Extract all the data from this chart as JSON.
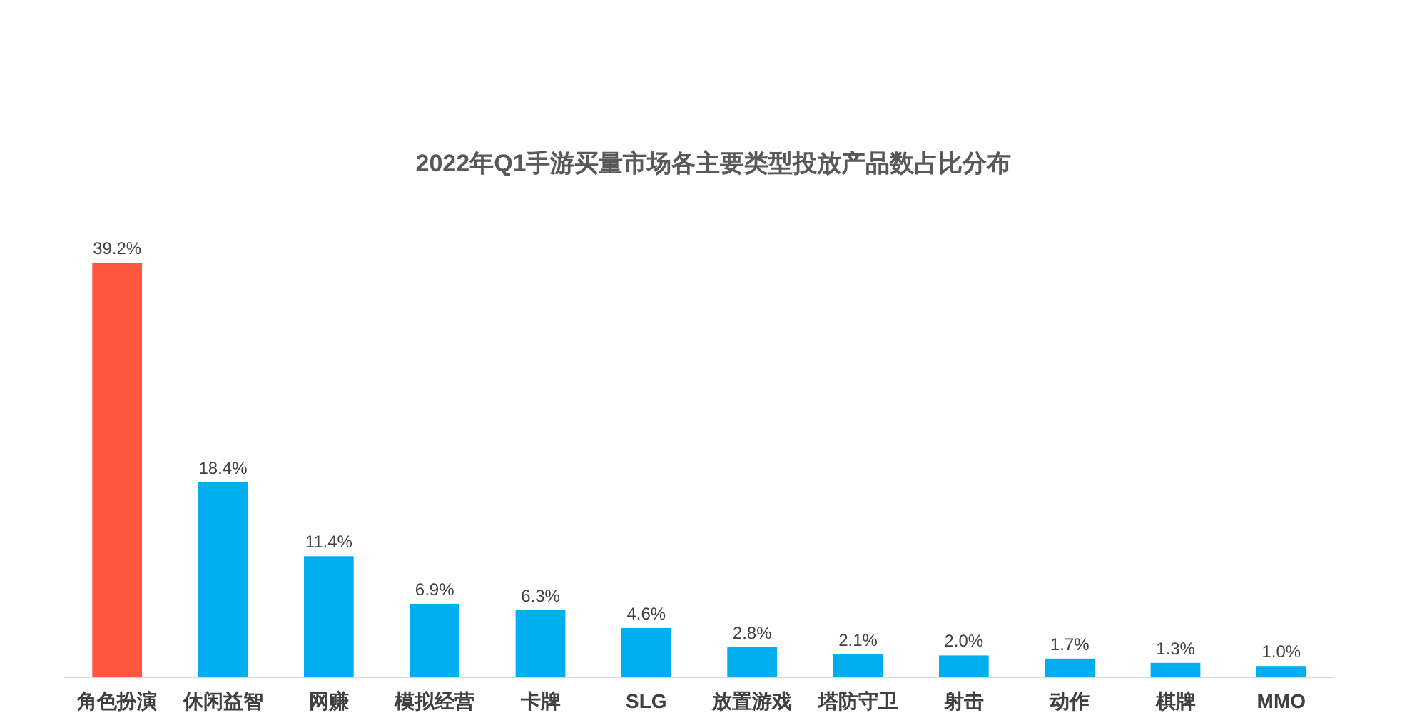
{
  "chart_data": {
    "type": "bar",
    "title": "2022年Q1手游买量市场各主要类型投放产品数占比分布",
    "categories": [
      "角色扮演",
      "休闲益智",
      "网赚",
      "模拟经营",
      "卡牌",
      "SLG",
      "放置游戏",
      "塔防守卫",
      "射击",
      "动作",
      "棋牌",
      "MMO"
    ],
    "values": [
      39.2,
      18.4,
      11.4,
      6.9,
      6.3,
      4.6,
      2.8,
      2.1,
      2.0,
      1.7,
      1.3,
      1.0
    ],
    "colors": [
      "#ff5640",
      "#00aeef",
      "#00aeef",
      "#00aeef",
      "#00aeef",
      "#00aeef",
      "#00aeef",
      "#00aeef",
      "#00aeef",
      "#00aeef",
      "#00aeef",
      "#00aeef"
    ],
    "value_labels": [
      "39.2%",
      "18.4%",
      "11.4%",
      "6.9%",
      "6.3%",
      "4.6%",
      "2.8%",
      "2.1%",
      "2.0%",
      "1.7%",
      "1.3%",
      "1.0%"
    ],
    "tick_labels": "x"
  }
}
